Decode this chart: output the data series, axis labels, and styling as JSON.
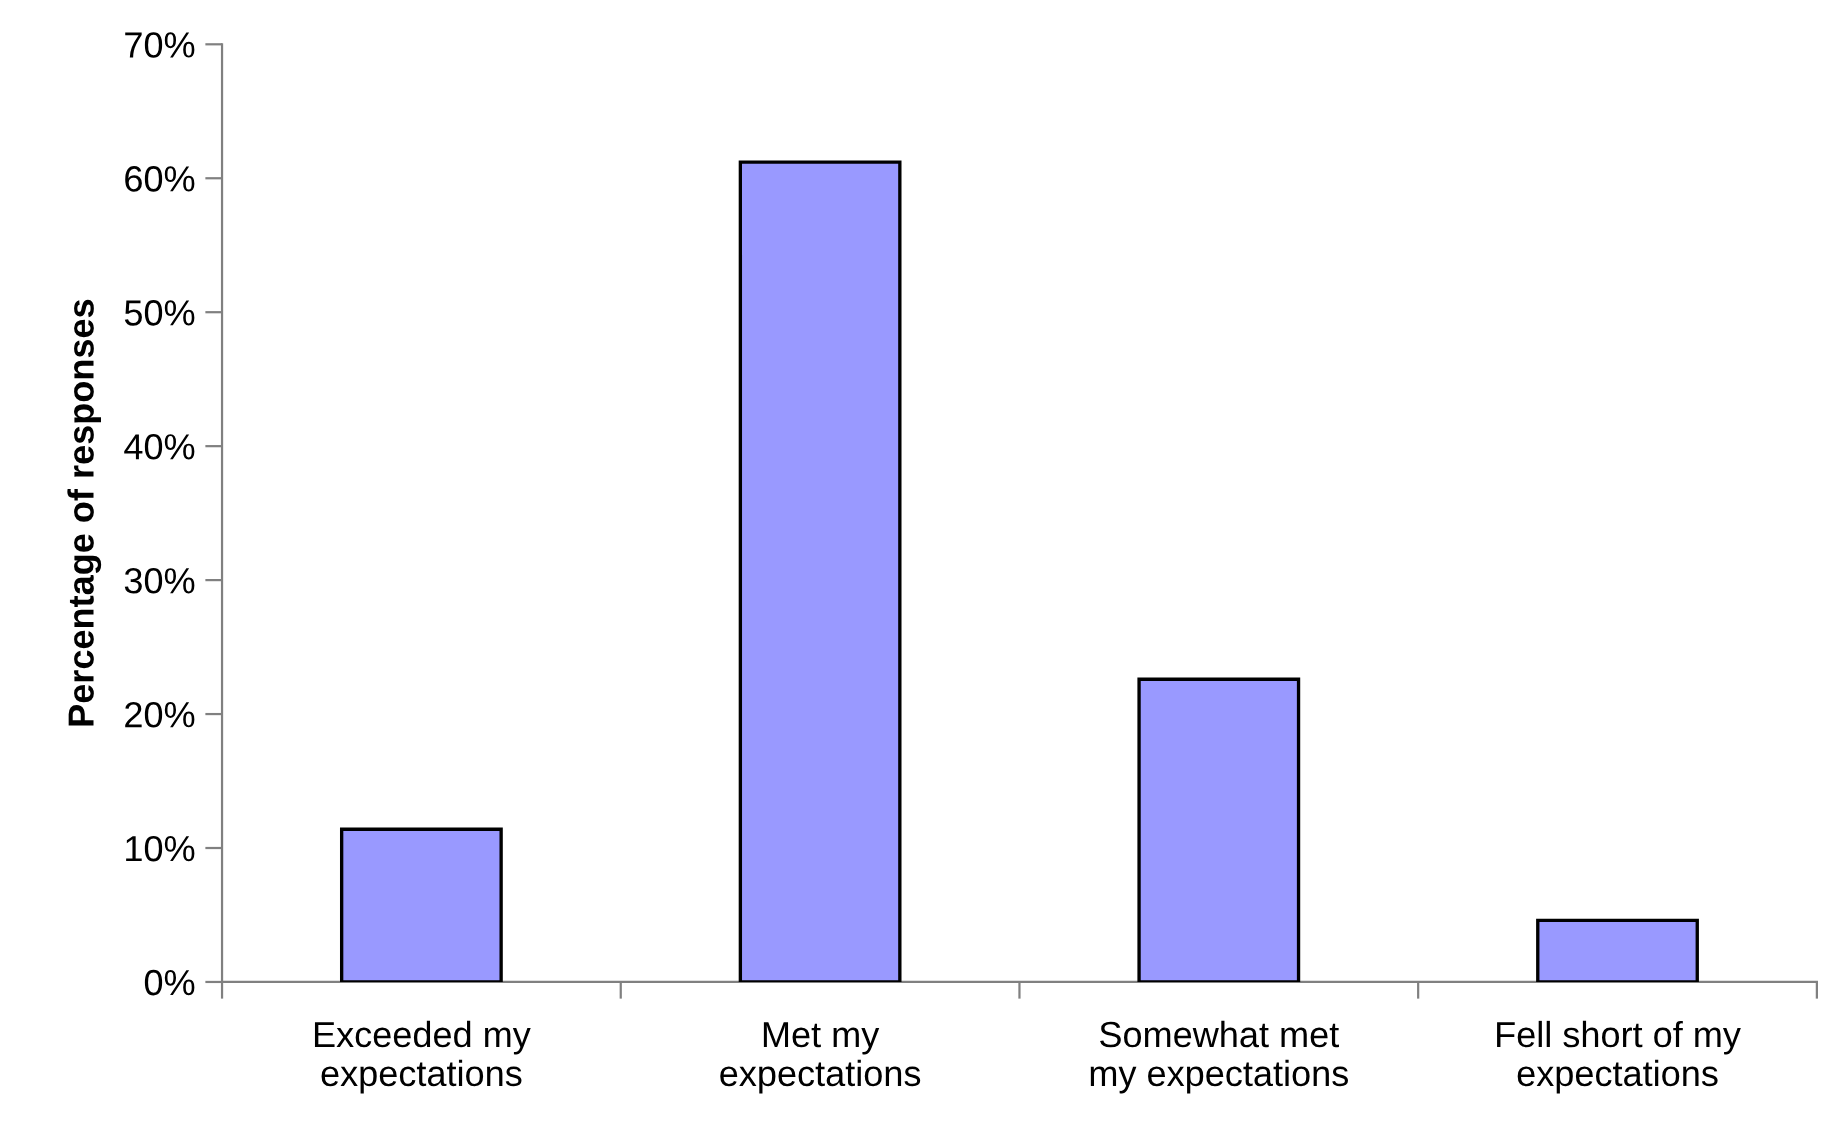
{
  "chart_data": {
    "type": "bar",
    "ylabel": "Percentage of responses",
    "categories": [
      "Exceeded my\nexpectations",
      "Met my\nexpectations",
      "Somewhat met\nmy expectations",
      "Fell short of my\nexpectations"
    ],
    "values": [
      11.4,
      61.2,
      22.6,
      4.6
    ],
    "color": "#9999ff",
    "ylim": [
      0,
      70
    ],
    "yticks": [
      {
        "value": 0,
        "label": "0%"
      },
      {
        "value": 10,
        "label": "10%"
      },
      {
        "value": 20,
        "label": "20%"
      },
      {
        "value": 30,
        "label": "30%"
      },
      {
        "value": 40,
        "label": "40%"
      },
      {
        "value": 50,
        "label": "50%"
      },
      {
        "value": 60,
        "label": "60%"
      },
      {
        "value": 70,
        "label": "70%"
      }
    ],
    "grid": false,
    "legend": false
  }
}
